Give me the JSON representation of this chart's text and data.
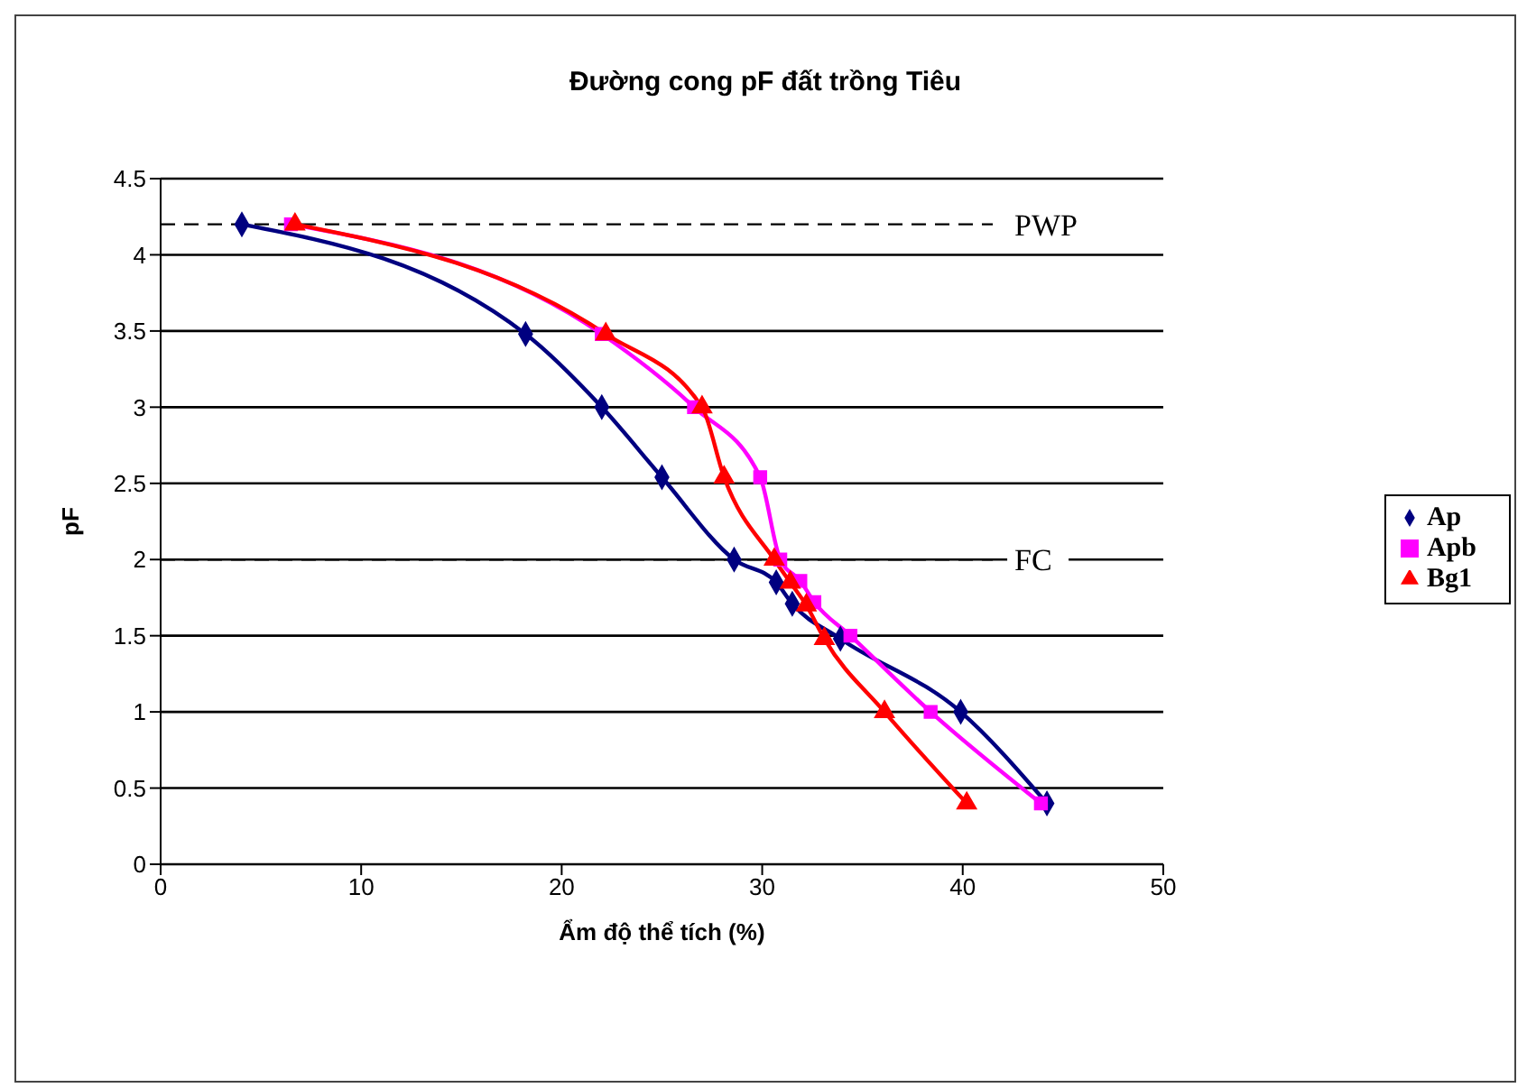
{
  "chart_data": {
    "type": "line",
    "title": "Đường cong pF đất trồng Tiêu",
    "xlabel": "Ẩm độ thể tích (%)",
    "ylabel": "pF",
    "xlim": [
      0,
      50
    ],
    "xticks": [
      0,
      10,
      20,
      30,
      40,
      50
    ],
    "ylim": [
      0,
      4.5
    ],
    "yticks": [
      0,
      0.5,
      1,
      1.5,
      2,
      2.5,
      3,
      3.5,
      4,
      4.5
    ],
    "grid": "y",
    "legend": "right",
    "series": [
      {
        "name": "Ap",
        "color": "#000080",
        "marker": "diamond",
        "x": [
          4.05,
          18.2,
          22.0,
          25.0,
          28.6,
          30.7,
          31.5,
          33.9,
          39.9,
          44.2
        ],
        "values": [
          4.2,
          3.48,
          3.0,
          2.54,
          2.0,
          1.85,
          1.71,
          1.48,
          1.0,
          0.4
        ]
      },
      {
        "name": "Apb",
        "color": "#ff00ff",
        "marker": "square",
        "x": [
          6.5,
          22.0,
          26.6,
          29.9,
          30.9,
          31.9,
          32.6,
          34.4,
          38.4,
          43.9
        ],
        "values": [
          4.2,
          3.48,
          3.0,
          2.54,
          2.0,
          1.86,
          1.72,
          1.5,
          1.0,
          0.4
        ]
      },
      {
        "name": "Bg1",
        "color": "#ff0000",
        "marker": "triangle",
        "x": [
          6.7,
          22.2,
          27.0,
          28.1,
          30.6,
          31.4,
          32.2,
          33.1,
          36.1,
          40.2
        ],
        "values": [
          4.2,
          3.48,
          3.0,
          2.54,
          2.0,
          1.85,
          1.7,
          1.48,
          1.0,
          0.4
        ]
      }
    ],
    "ref_lines": [
      {
        "axis": "y",
        "value": 4.2,
        "label": "PWP",
        "color": "#000000",
        "line_style": "dashed"
      },
      {
        "axis": "y",
        "value": 2,
        "label": "FC",
        "color": "#000000",
        "line_style": "dashed"
      }
    ]
  }
}
